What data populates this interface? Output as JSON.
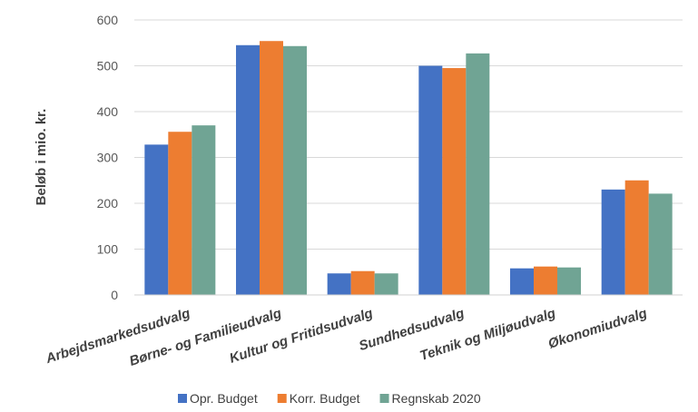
{
  "chart_data": {
    "type": "bar",
    "title": "",
    "xlabel": "",
    "ylabel": "Beløb i mio. kr.",
    "ylim": [
      0,
      600
    ],
    "yticks": [
      0,
      100,
      200,
      300,
      400,
      500,
      600
    ],
    "grid": true,
    "legend_position": "bottom",
    "categories": [
      "Arbejdsmarkedsudvalg",
      "Børne- og Familieudvalg",
      "Kultur og Fritidsudvalg",
      "Sundhedsudvalg",
      "Teknik og Miljøudvalg",
      "Økonomiudvalg"
    ],
    "series": [
      {
        "name": "Opr. Budget",
        "color": "#4472C4",
        "values": [
          328,
          545,
          47,
          500,
          58,
          230
        ]
      },
      {
        "name": "Korr. Budget",
        "color": "#ED7D31",
        "values": [
          356,
          554,
          52,
          495,
          62,
          250
        ]
      },
      {
        "name": "Regnskab 2020",
        "color": "#70A494",
        "values": [
          370,
          543,
          47,
          527,
          60,
          221
        ]
      }
    ]
  }
}
